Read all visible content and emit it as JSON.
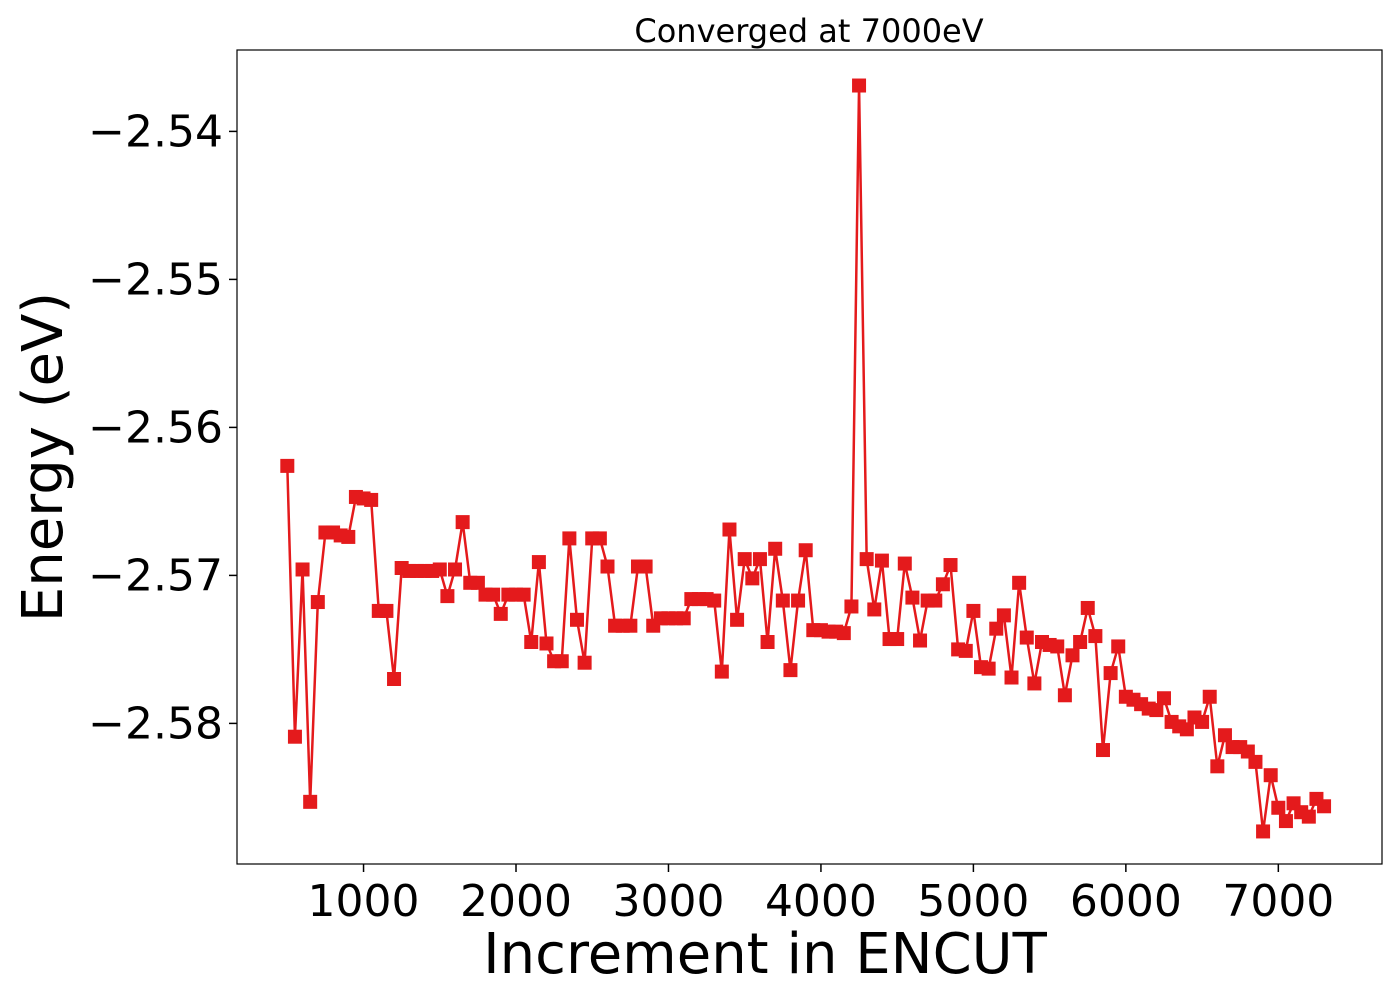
{
  "chart_data": {
    "type": "line",
    "title": "Converged at 7000eV",
    "xlabel": "Increment in ENCUT",
    "ylabel": "Energy (eV)",
    "xlim": [
      170,
      7680
    ],
    "ylim": [
      -2.5895,
      -2.5345
    ],
    "xticks": [
      1000,
      2000,
      3000,
      4000,
      5000,
      6000,
      7000
    ],
    "xtick_labels": [
      "1000",
      "2000",
      "3000",
      "4000",
      "5000",
      "6000",
      "7000"
    ],
    "yticks": [
      -2.58,
      -2.57,
      -2.56,
      -2.55,
      -2.54
    ],
    "ytick_labels": [
      "−2.58",
      "−2.57",
      "−2.56",
      "−2.55",
      "−2.54"
    ],
    "grid": false,
    "legend": false,
    "marker": "square",
    "color": "#e41a1c",
    "series": [
      {
        "x": [
          500,
          550,
          600,
          650,
          700,
          750,
          800,
          850,
          900,
          950,
          1000,
          1050,
          1100,
          1150,
          1200,
          1250,
          1300,
          1350,
          1400,
          1450,
          1500,
          1550,
          1600,
          1650,
          1700,
          1750,
          1800,
          1850,
          1900,
          1950,
          2000,
          2050,
          2100,
          2150,
          2200,
          2250,
          2300,
          2350,
          2400,
          2450,
          2500,
          2550,
          2600,
          2650,
          2700,
          2750,
          2800,
          2850,
          2900,
          2950,
          3000,
          3050,
          3100,
          3150,
          3200,
          3250,
          3300,
          3350,
          3400,
          3450,
          3500,
          3550,
          3600,
          3650,
          3700,
          3750,
          3800,
          3850,
          3900,
          3950,
          4000,
          4050,
          4100,
          4150,
          4200,
          4250,
          4300,
          4350,
          4400,
          4450,
          4500,
          4550,
          4600,
          4650,
          4700,
          4750,
          4800,
          4850,
          4900,
          4950,
          5000,
          5050,
          5100,
          5150,
          5200,
          5250,
          5300,
          5350,
          5400,
          5450,
          5500,
          5550,
          5600,
          5650,
          5700,
          5750,
          5800,
          5850,
          5900,
          5950,
          6000,
          6050,
          6100,
          6150,
          6200,
          6250,
          6300,
          6350,
          6400,
          6450,
          6500,
          6550,
          6600,
          6650,
          6700,
          6750,
          6800,
          6850,
          6900,
          6950,
          7000,
          7050,
          7100,
          7150,
          7200,
          7250,
          7300
        ],
        "y": [
          -2.5626,
          -2.5809,
          -2.5696,
          -2.5853,
          -2.5718,
          -2.5671,
          -2.5671,
          -2.5673,
          -2.5674,
          -2.5647,
          -2.5648,
          -2.5649,
          -2.5724,
          -2.5724,
          -2.577,
          -2.5695,
          -2.5697,
          -2.5697,
          -2.5697,
          -2.5697,
          -2.5696,
          -2.5714,
          -2.5696,
          -2.5664,
          -2.5705,
          -2.5705,
          -2.5713,
          -2.5713,
          -2.5726,
          -2.5713,
          -2.5713,
          -2.5713,
          -2.5745,
          -2.5691,
          -2.5746,
          -2.5758,
          -2.5758,
          -2.5675,
          -2.573,
          -2.5759,
          -2.5675,
          -2.5675,
          -2.5694,
          -2.5734,
          -2.5734,
          -2.5734,
          -2.5694,
          -2.5694,
          -2.5734,
          -2.5729,
          -2.5729,
          -2.5729,
          -2.5729,
          -2.5716,
          -2.5716,
          -2.5716,
          -2.5717,
          -2.5765,
          -2.5669,
          -2.573,
          -2.5689,
          -2.5702,
          -2.5689,
          -2.5745,
          -2.5682,
          -2.5717,
          -2.5764,
          -2.5717,
          -2.5683,
          -2.5737,
          -2.5737,
          -2.5738,
          -2.5738,
          -2.5739,
          -2.5721,
          -2.5369,
          -2.5689,
          -2.5723,
          -2.569,
          -2.5743,
          -2.5743,
          -2.5692,
          -2.5715,
          -2.5744,
          -2.5717,
          -2.5717,
          -2.5706,
          -2.5693,
          -2.575,
          -2.5751,
          -2.5724,
          -2.5762,
          -2.5763,
          -2.5736,
          -2.5727,
          -2.5769,
          -2.5705,
          -2.5742,
          -2.5773,
          -2.5745,
          -2.5747,
          -2.5748,
          -2.5781,
          -2.5754,
          -2.5745,
          -2.5722,
          -2.5741,
          -2.5818,
          -2.5766,
          -2.5748,
          -2.5782,
          -2.5784,
          -2.5787,
          -2.579,
          -2.5791,
          -2.5783,
          -2.5799,
          -2.5802,
          -2.5804,
          -2.5796,
          -2.5799,
          -2.5782,
          -2.5829,
          -2.5808,
          -2.5816,
          -2.5816,
          -2.5819,
          -2.5826,
          -2.5873,
          -2.5835,
          -2.5857,
          -2.5866,
          -2.5854,
          -2.586,
          -2.5863,
          -2.5851,
          -2.5856
        ]
      }
    ]
  }
}
